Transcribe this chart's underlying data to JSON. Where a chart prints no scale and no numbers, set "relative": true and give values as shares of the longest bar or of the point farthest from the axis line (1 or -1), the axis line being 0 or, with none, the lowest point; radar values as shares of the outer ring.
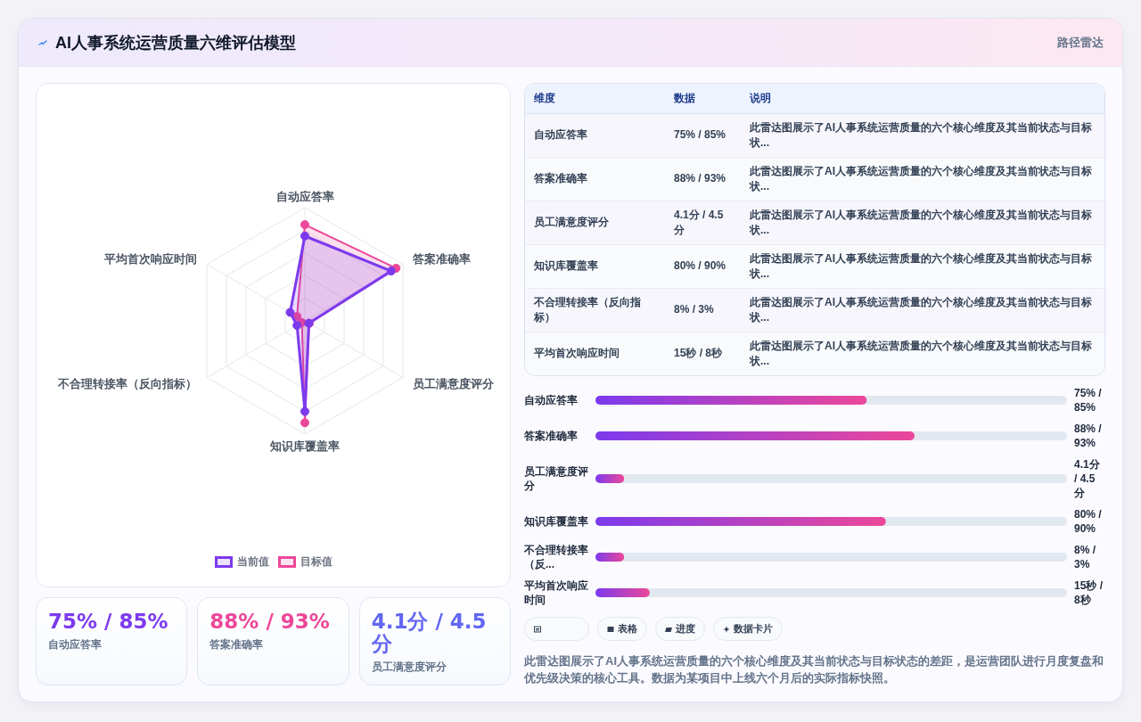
{
  "chart_data": [
    {
      "type": "other",
      "title": "AI人事系统运营质量六维评估模型",
      "subtitle": "路径雷达"
    },
    {
      "type": "radar",
      "categories": [
        "自动应答率",
        "答案准确率",
        "员工满意度评分",
        "知识库覆盖率",
        "不合理转接率（反向指标）",
        "平均首次响应时间"
      ],
      "series": [
        {
          "name": "当前值",
          "color": "#7c3aed",
          "values": [
            0.75,
            0.88,
            0.041,
            0.8,
            0.08,
            0.15
          ]
        },
        {
          "name": "目标值",
          "color": "#ec4899",
          "values": [
            0.85,
            0.93,
            0.045,
            0.9,
            0.03,
            0.08
          ]
        }
      ],
      "relative": true,
      "grid": true,
      "legend": "bottom",
      "marker": "circle"
    },
    {
      "type": "other",
      "categories": [
        "自动应答率",
        "答案准确率",
        "员工满意度评分",
        "知识库覆盖率",
        "不合理转接率（反向指标）",
        "平均首次响应时间"
      ],
      "annotations": [
        "维度",
        "数据",
        "说明",
        "75% / 85%",
        "此雷达图展示了AI人事系统运营质量的六个核心维度及其当前状态与目标状...",
        "88% / 93%",
        "此雷达图展示了AI人事系统运营质量的六个核心维度及其当前状态与目标状...",
        "4.1分 / 4.5分",
        "此雷达图展示了AI人事系统运营质量的六个核心维度及其当前状态与目标状...",
        "80% / 90%",
        "此雷达图展示了AI人事系统运营质量的六个核心维度及其当前状态与目标状...",
        "8% / 3%",
        "此雷达图展示了AI人事系统运营质量的六个核心维度及其当前状态与目标状...",
        "15秒 / 8秒",
        "此雷达图展示了AI人事系统运营质量的六个核心维度及其当前状态与目标状..."
      ]
    },
    {
      "type": "bar",
      "orientation": "horizontal",
      "relative": true,
      "categories": [
        "自动应答率",
        "答案准确率",
        "员工满意度评分",
        "知识库覆盖率",
        "不合理转接率（反...",
        "平均首次响应时间"
      ],
      "values": [
        0.85,
        1,
        0.09,
        0.91,
        0.09,
        0.17
      ],
      "annotations": [
        "75% / 85%",
        "88% / 93%",
        "4.1分 / 4.5分",
        "80% / 90%",
        "8% / 3%",
        "15秒 / 8秒"
      ],
      "color": "#7c3aed",
      "tick_labels": "y"
    },
    {
      "type": "other",
      "categories": [
        "自动应答率",
        "答案准确率",
        "员工满意度评分"
      ],
      "annotations": [
        "75% / 85%",
        "88% / 93%",
        "4.1分 / 4.5分"
      ]
    },
    {
      "type": "other",
      "categories": [
        null,
        "表格",
        "进度",
        "数据卡片"
      ],
      "annotations": [
        "此雷达图展示了AI人事系统运营质量的六个核心维度及其当前状态与目标状态的差距，是运营团队进行月度复盘和优先级决策的核心工具。数据为某项目中上线六个月后的实际指标快照。"
      ]
    }
  ]
}
